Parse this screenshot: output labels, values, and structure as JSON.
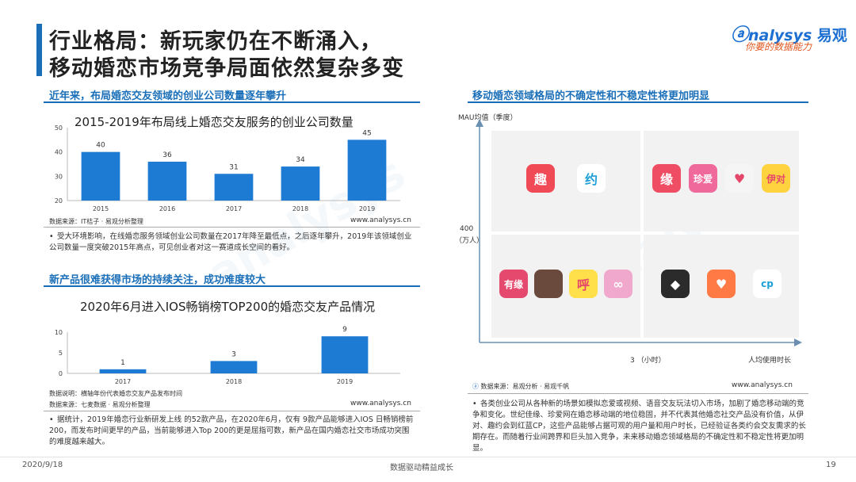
{
  "header": {
    "title_line1": "行业格局：新玩家仍在不断涌入，",
    "title_line2": "移动婚恋市场竞争局面依然复杂多变",
    "logo_text": "nalysys",
    "logo_cn": "易观",
    "logo_tagline": "你要的数据能力",
    "accent_color": "#1a6fb8"
  },
  "left": {
    "section1": {
      "heading": "近年来，布局婚恋交友领域的创业公司数量逐年攀升",
      "source": "数据来源：IT桔子 · 易观分析整理",
      "url": "www.analysys.cn",
      "bullet": "受大环境影响，在线婚恋服务领域创业公司数量在2017年降至最低点，之后逐年攀升，2019年该领域创业公司数量一度突破2015年高点，可见创业者对这一赛道成长空间的看好。"
    },
    "section2": {
      "heading": "新产品很难获得市场的持续关注，成功难度较大",
      "note": "数据说明：横轴年份代表婚恋交友产品发布时间",
      "source": "数据来源：七麦数据 · 易观分析整理",
      "url": "www.analysys.cn",
      "bullet": "据统计，2019年婚恋行业新研发上线 的52款产品，在2020年6月，仅有 9款产品能够进入IOS 日畅销榜前 200，而发布时间更早的产品，当前能够进入Top 200的更是屈指可数，新产品在国内婚恋社交市场成功突围的难度越来越大。"
    }
  },
  "right": {
    "heading": "移动婚恋领域格局的不确定性和不稳定性将更加明显",
    "y_axis_label": "MAU均值（季度）",
    "y_mid_label": "400",
    "y_mid_unit": "（万人）",
    "x_mid_label": "3 （小时）",
    "x_axis_label": "人均使用时长",
    "source": "数据来源：易观分析 · 易观千帆",
    "url": "www.analysys.cn",
    "bullet": "各类创业公司从各种新的场景如模拟恋爱或视频、语音交友玩法切入市场，加剧了婚恋移动端的竞争和变化。世纪佳缘、珍爱网在婚恋移动端的地位稳固，并不代表其他婚恋社交产品没有价值，从伊对、趣约会到红蓝CP，这些产品能够占据可观的用户量和用户时长，已经验证各类约会交友需求的长期存在。而随着行业间跨界和巨头加入竞争，未来移动婚恋领域格局的不确定性和不稳定性将更加明显。",
    "apps": {
      "top_left": [
        {
          "icon": "qu-app-icon",
          "glyph": "趣",
          "color": "#f04a56"
        },
        {
          "icon": "yue-app-icon",
          "glyph": "约",
          "color": "#ffffff"
        }
      ],
      "top_right": [
        {
          "icon": "jiayuan-app-icon",
          "glyph": "缘",
          "color": "#ef4d64"
        },
        {
          "icon": "zhenai-app-icon",
          "glyph": "珍爱",
          "color": "#ef6a9a"
        },
        {
          "icon": "heart-people-app-icon",
          "glyph": "♥",
          "color": "#f5f5f5"
        },
        {
          "icon": "yidui-app-icon",
          "glyph": "伊对",
          "color": "#ffd23f"
        }
      ],
      "bottom_left": [
        {
          "icon": "youyuan-app-icon",
          "glyph": "有缘",
          "color": "#e54a6e"
        },
        {
          "icon": "portrait-app-icon",
          "glyph": "",
          "color": "#6b4a3e"
        },
        {
          "icon": "hu-app-icon",
          "glyph": "呼",
          "color": "#ffe04a"
        },
        {
          "icon": "rings-app-icon",
          "glyph": "∞",
          "color": "#f0a8cc"
        }
      ],
      "bottom_right": [
        {
          "icon": "diamond-app-icon",
          "glyph": "◆",
          "color": "#2b2b2b"
        },
        {
          "icon": "hand-heart-app-icon",
          "glyph": "♥",
          "color": "#ff7a45"
        },
        {
          "icon": "cp-app-icon",
          "glyph": "cp",
          "color": "#ffffff"
        }
      ]
    }
  },
  "footer": {
    "date": "2020/9/18",
    "slogan": "数据驱动精益成长",
    "page": "19"
  },
  "chart_data": [
    {
      "type": "bar",
      "title": "2015-2019年布局线上婚恋交友服务的创业公司数量",
      "categories": [
        "2015",
        "2016",
        "2017",
        "2018",
        "2019"
      ],
      "values": [
        40,
        36,
        31,
        34,
        45
      ],
      "ylim": [
        20,
        50
      ],
      "yticks": [
        "50",
        "40",
        "30",
        "20"
      ],
      "xlabel": "",
      "ylabel": "",
      "color": "#1e7bd3",
      "grid": false
    },
    {
      "type": "bar",
      "title": "2020年6月进入IOS畅销榜TOP200的婚恋交友产品情况",
      "categories": [
        "2017",
        "2018",
        "2019"
      ],
      "values": [
        1,
        3,
        9
      ],
      "ylim": [
        0,
        10
      ],
      "yticks": [
        "10",
        "5",
        "0"
      ],
      "xlabel": "",
      "ylabel": "",
      "color": "#1e7bd3",
      "grid": false
    }
  ]
}
